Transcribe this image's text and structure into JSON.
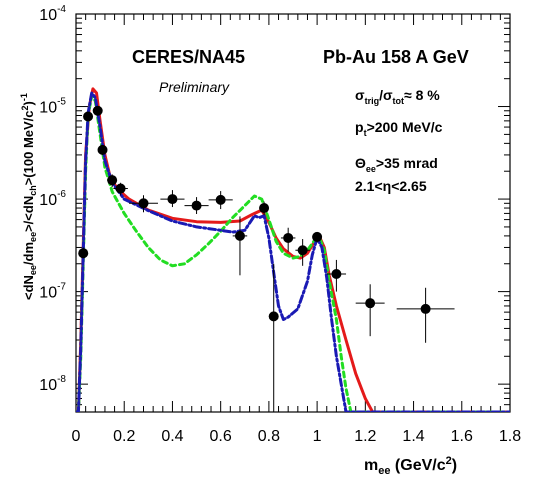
{
  "chart_data": {
    "type": "scatter",
    "title": "CERES/NA45",
    "subtitle": "Preliminary",
    "annotation_right": "Pb-Au 158 A GeV",
    "cuts": {
      "sigma_base": "σ",
      "sigma_sub1": "trig",
      "sigma_sep": "/σ",
      "sigma_sub2": "tot",
      "sigma_val": "≈ 8 %",
      "pt_base": "p",
      "pt_sub": "t",
      "pt_val": ">200 MeV/c",
      "theta_base": "Θ",
      "theta_sub": "ee",
      "theta_val": ">35 mrad",
      "eta": "2.1<η<2.65"
    },
    "xlabel": {
      "base": "m",
      "sub": "ee",
      "rest": " (GeV/c",
      "sup": "2",
      "close": ")"
    },
    "ylabel": "<dN_ee/dm_ee>/<dN_ch>(100 MeV/c^2)^-1",
    "xlim": [
      0,
      1.8
    ],
    "ylim": [
      5e-09,
      0.0001
    ],
    "yscale": "log",
    "grid": false,
    "x_ticks": [
      "0",
      "0.2",
      "0.4",
      "0.6",
      "0.8",
      "1",
      "1.2",
      "1.4",
      "1.6",
      "1.8"
    ],
    "y_ticks": [
      {
        "base": "10",
        "exp": "-8"
      },
      {
        "base": "10",
        "exp": "-7"
      },
      {
        "base": "10",
        "exp": "-6"
      },
      {
        "base": "10",
        "exp": "-5"
      },
      {
        "base": "10",
        "exp": "-4"
      }
    ],
    "data_points": [
      {
        "x": 0.03,
        "y": 2.6e-07,
        "xerr": 0.01,
        "ylo": 2.3e-07,
        "yhi": 3e-07
      },
      {
        "x": 0.05,
        "y": 7.8e-06,
        "xerr": 0.01,
        "ylo": 7e-06,
        "yhi": 8.6e-06
      },
      {
        "x": 0.09,
        "y": 9e-06,
        "xerr": 0.01,
        "ylo": 8.2e-06,
        "yhi": 9.8e-06
      },
      {
        "x": 0.11,
        "y": 3.4e-06,
        "xerr": 0.01,
        "ylo": 3e-06,
        "yhi": 3.8e-06
      },
      {
        "x": 0.15,
        "y": 1.6e-06,
        "xerr": 0.02,
        "ylo": 1.35e-06,
        "yhi": 1.85e-06
      },
      {
        "x": 0.185,
        "y": 1.3e-06,
        "xerr": 0.03,
        "ylo": 1.1e-06,
        "yhi": 1.5e-06
      },
      {
        "x": 0.28,
        "y": 9e-07,
        "xerr": 0.06,
        "ylo": 7.2e-07,
        "yhi": 1.1e-06
      },
      {
        "x": 0.4,
        "y": 1e-06,
        "xerr": 0.05,
        "ylo": 8.2e-07,
        "yhi": 1.25e-06
      },
      {
        "x": 0.5,
        "y": 8.5e-07,
        "xerr": 0.05,
        "ylo": 6.9e-07,
        "yhi": 1.05e-06
      },
      {
        "x": 0.6,
        "y": 9.8e-07,
        "xerr": 0.05,
        "ylo": 7.8e-07,
        "yhi": 1.22e-06
      },
      {
        "x": 0.68,
        "y": 4e-07,
        "xerr": 0.03,
        "ylo": 1.5e-07,
        "yhi": 6.5e-07
      },
      {
        "x": 0.78,
        "y": 8e-07,
        "xerr": 0.02,
        "ylo": 6.7e-07,
        "yhi": 9.4e-07
      },
      {
        "x": 0.82,
        "y": 5.4e-08,
        "xerr": 0.02,
        "ylo": 5e-09,
        "yhi": 2e-07
      },
      {
        "x": 0.88,
        "y": 3.8e-07,
        "xerr": 0.03,
        "ylo": 2.7e-07,
        "yhi": 4.9e-07
      },
      {
        "x": 0.94,
        "y": 2.8e-07,
        "xerr": 0.03,
        "ylo": 1.9e-07,
        "yhi": 3.7e-07
      },
      {
        "x": 1.0,
        "y": 3.9e-07,
        "xerr": 0.02,
        "ylo": 3.4e-07,
        "yhi": 4.4e-07
      },
      {
        "x": 1.08,
        "y": 1.55e-07,
        "xerr": 0.04,
        "ylo": 1e-07,
        "yhi": 2.2e-07
      },
      {
        "x": 1.22,
        "y": 7.5e-08,
        "xerr": 0.06,
        "ylo": 3.3e-08,
        "yhi": 1.2e-07
      },
      {
        "x": 1.45,
        "y": 6.5e-08,
        "xerr": 0.12,
        "ylo": 2.8e-08,
        "yhi": 1.1e-07
      }
    ],
    "series": [
      {
        "style": "solid",
        "color": "#e41a1a",
        "points": [
          [
            0.0,
            5e-09
          ],
          [
            0.01,
            5e-09
          ],
          [
            0.02,
            3e-08
          ],
          [
            0.03,
            3e-07
          ],
          [
            0.04,
            3e-06
          ],
          [
            0.055,
            1e-05
          ],
          [
            0.07,
            1.55e-05
          ],
          [
            0.085,
            1.4e-05
          ],
          [
            0.1,
            7e-06
          ],
          [
            0.12,
            3e-06
          ],
          [
            0.14,
            1.8e-06
          ],
          [
            0.17,
            1.3e-06
          ],
          [
            0.22,
            1e-06
          ],
          [
            0.3,
            7.6e-07
          ],
          [
            0.4,
            6.2e-07
          ],
          [
            0.5,
            5.7e-07
          ],
          [
            0.6,
            5.6e-07
          ],
          [
            0.68,
            5.8e-07
          ],
          [
            0.73,
            6.8e-07
          ],
          [
            0.77,
            7.6e-07
          ],
          [
            0.8,
            5.6e-07
          ],
          [
            0.83,
            3.8e-07
          ],
          [
            0.86,
            2.9e-07
          ],
          [
            0.9,
            2.4e-07
          ],
          [
            0.93,
            2.3e-07
          ],
          [
            0.96,
            2.6e-07
          ],
          [
            0.99,
            3.5e-07
          ],
          [
            1.01,
            3.9e-07
          ],
          [
            1.03,
            3e-07
          ],
          [
            1.05,
            1.5e-07
          ],
          [
            1.08,
            7e-08
          ],
          [
            1.12,
            3e-08
          ],
          [
            1.16,
            1.3e-08
          ],
          [
            1.2,
            7e-09
          ],
          [
            1.23,
            5e-09
          ],
          [
            1.8,
            5e-09
          ]
        ]
      },
      {
        "style": "dashed",
        "color": "#22dd22",
        "points": [
          [
            0.0,
            5e-09
          ],
          [
            0.01,
            5e-09
          ],
          [
            0.02,
            2e-08
          ],
          [
            0.03,
            2e-07
          ],
          [
            0.04,
            2e-06
          ],
          [
            0.05,
            8e-06
          ],
          [
            0.065,
            1.3e-05
          ],
          [
            0.08,
            1.15e-05
          ],
          [
            0.1,
            5e-06
          ],
          [
            0.12,
            2.2e-06
          ],
          [
            0.15,
            1.2e-06
          ],
          [
            0.2,
            7e-07
          ],
          [
            0.25,
            4.5e-07
          ],
          [
            0.3,
            3e-07
          ],
          [
            0.35,
            2.2e-07
          ],
          [
            0.4,
            1.9e-07
          ],
          [
            0.45,
            2e-07
          ],
          [
            0.5,
            2.5e-07
          ],
          [
            0.55,
            3.3e-07
          ],
          [
            0.6,
            4.5e-07
          ],
          [
            0.65,
            6.3e-07
          ],
          [
            0.7,
            8.5e-07
          ],
          [
            0.74,
            1.08e-06
          ],
          [
            0.77,
            1e-06
          ],
          [
            0.8,
            6e-07
          ],
          [
            0.83,
            3.5e-07
          ],
          [
            0.86,
            2.6e-07
          ],
          [
            0.9,
            2.3e-07
          ],
          [
            0.93,
            2.4e-07
          ],
          [
            0.96,
            2.8e-07
          ],
          [
            0.99,
            3.6e-07
          ],
          [
            1.01,
            3.8e-07
          ],
          [
            1.03,
            2.8e-07
          ],
          [
            1.05,
            1.3e-07
          ],
          [
            1.08,
            5e-08
          ],
          [
            1.1,
            2e-08
          ],
          [
            1.12,
            9e-09
          ],
          [
            1.14,
            5e-09
          ],
          [
            1.8,
            5e-09
          ]
        ]
      },
      {
        "style": "dash-dot",
        "color": "#1a1ab4",
        "points": [
          [
            0.0,
            5e-09
          ],
          [
            0.01,
            5e-09
          ],
          [
            0.02,
            2.5e-08
          ],
          [
            0.03,
            2.5e-07
          ],
          [
            0.04,
            2.5e-06
          ],
          [
            0.05,
            8.5e-06
          ],
          [
            0.065,
            1.4e-05
          ],
          [
            0.08,
            1.25e-05
          ],
          [
            0.1,
            6e-06
          ],
          [
            0.12,
            2.6e-06
          ],
          [
            0.15,
            1.5e-06
          ],
          [
            0.2,
            1e-06
          ],
          [
            0.3,
            7.5e-07
          ],
          [
            0.4,
            5.8e-07
          ],
          [
            0.5,
            5e-07
          ],
          [
            0.6,
            4.6e-07
          ],
          [
            0.65,
            4.4e-07
          ],
          [
            0.7,
            4.6e-07
          ],
          [
            0.72,
            5.5e-07
          ],
          [
            0.74,
            6.6e-07
          ],
          [
            0.76,
            6.3e-07
          ],
          [
            0.78,
            6.6e-07
          ],
          [
            0.8,
            3.8e-07
          ],
          [
            0.82,
            1.6e-07
          ],
          [
            0.84,
            7e-08
          ],
          [
            0.86,
            5e-08
          ],
          [
            0.88,
            5.3e-08
          ],
          [
            0.92,
            6.5e-08
          ],
          [
            0.96,
            1.3e-07
          ],
          [
            0.98,
            2.5e-07
          ],
          [
            1.0,
            3.8e-07
          ],
          [
            1.02,
            3e-07
          ],
          [
            1.04,
            1.4e-07
          ],
          [
            1.06,
            5e-08
          ],
          [
            1.08,
            2e-08
          ],
          [
            1.1,
            1e-08
          ],
          [
            1.12,
            5e-09
          ],
          [
            1.8,
            5e-09
          ]
        ]
      }
    ]
  }
}
